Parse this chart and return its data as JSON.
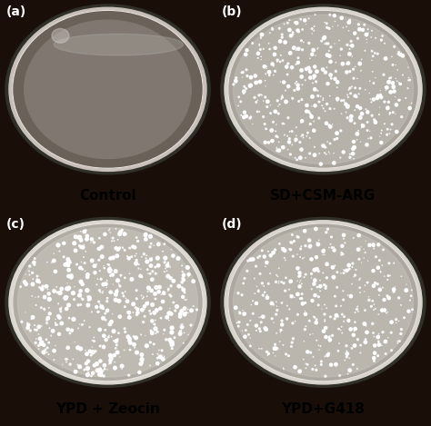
{
  "background_color": "#1a0f08",
  "caption_area_color": "#e8e4de",
  "panels": [
    {
      "label": "(a)",
      "caption": "Control",
      "row": 0,
      "col": 0,
      "plate_base_color": "#6a6258",
      "plate_inner_color": "#807870",
      "rim_color": "#c8c0b8",
      "has_colonies": false,
      "colony_density": 0,
      "colony_size_min": 1.0,
      "colony_size_max": 4.0
    },
    {
      "label": "(b)",
      "caption": "SD+CSM-ARG",
      "row": 0,
      "col": 1,
      "plate_base_color": "#a8a49c",
      "plate_inner_color": "#c4c0b8",
      "rim_color": "#d8d4cc",
      "has_colonies": true,
      "colony_density": 500,
      "colony_size_min": 0.8,
      "colony_size_max": 5.0
    },
    {
      "label": "(c)",
      "caption": "YPD + Zeocin",
      "row": 1,
      "col": 0,
      "plate_base_color": "#b0aca4",
      "plate_inner_color": "#ccc8c0",
      "rim_color": "#dcd8d0",
      "has_colonies": true,
      "colony_density": 600,
      "colony_size_min": 0.8,
      "colony_size_max": 6.0
    },
    {
      "label": "(d)",
      "caption": "YPD+G418",
      "row": 1,
      "col": 1,
      "plate_base_color": "#aca8a0",
      "plate_inner_color": "#c8c4bc",
      "rim_color": "#d8d4cc",
      "has_colonies": true,
      "colony_density": 450,
      "colony_size_min": 0.8,
      "colony_size_max": 5.0
    }
  ],
  "label_color": "#ffffff",
  "caption_color": "#000000",
  "label_fontsize": 10,
  "caption_fontsize": 11,
  "fig_width": 4.74,
  "fig_height": 4.69,
  "dpi": 100
}
